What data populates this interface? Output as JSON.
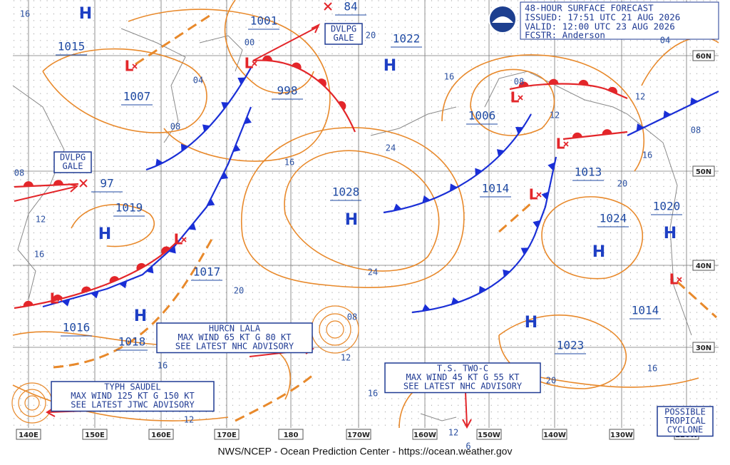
{
  "header": {
    "title": "48-HOUR SURFACE FORECAST",
    "issued": "ISSUED: 17:51 UTC 21 AUG 2026",
    "valid": "VALID:  12:00 UTC 23 AUG 2026",
    "forecaster": "FCSTR:  Anderson"
  },
  "pressure_centers": [
    "1015",
    "1001",
    "84",
    "1022",
    "1007",
    "998",
    "1006",
    "97",
    "1019",
    "1028",
    "1014",
    "1013",
    "1024",
    "1020",
    "1017",
    "1016",
    "1018",
    "1023",
    "1014"
  ],
  "highs": [
    "H",
    "H",
    "H",
    "H",
    "H",
    "H",
    "H",
    "H"
  ],
  "lows": [
    "L",
    "L",
    "L",
    "L",
    "L",
    "L",
    "L",
    "L"
  ],
  "isobar_labels": [
    "16",
    "00",
    "04",
    "08",
    "20",
    "16",
    "08",
    "12",
    "12",
    "04",
    "08",
    "16",
    "20",
    "24",
    "16",
    "08",
    "12",
    "16",
    "24",
    "20",
    "08",
    "12",
    "16",
    "16",
    "20",
    "16",
    "12",
    "12",
    "6"
  ],
  "boxes": [
    [
      "DVLPG",
      "GALE"
    ],
    [
      "DVLPG",
      "GALE"
    ],
    [
      "HURCN LALA",
      "MAX WIND 65 KT G 80 KT",
      "SEE LATEST NHC ADVISORY"
    ],
    [
      "T.S. TWO-C",
      "MAX WIND 45 KT G 55 KT",
      "SEE LATEST NHC ADVISORY"
    ],
    [
      "TYPH SAUDEL",
      "MAX WIND 125 KT G 150 KT",
      "SEE LATEST JTWC ADVISORY"
    ],
    [
      "POSSIBLE",
      "TROPICAL",
      "CYCLONE"
    ]
  ],
  "longitudes": [
    "140E",
    "150E",
    "160E",
    "170E",
    "180",
    "170W",
    "160W",
    "150W",
    "140W",
    "130W",
    "120W"
  ],
  "latitudes": [
    "60N",
    "50N",
    "40N",
    "30N"
  ],
  "footer": "NWS/NCEP - Ocean Prediction Center - https://ocean.weather.gov"
}
